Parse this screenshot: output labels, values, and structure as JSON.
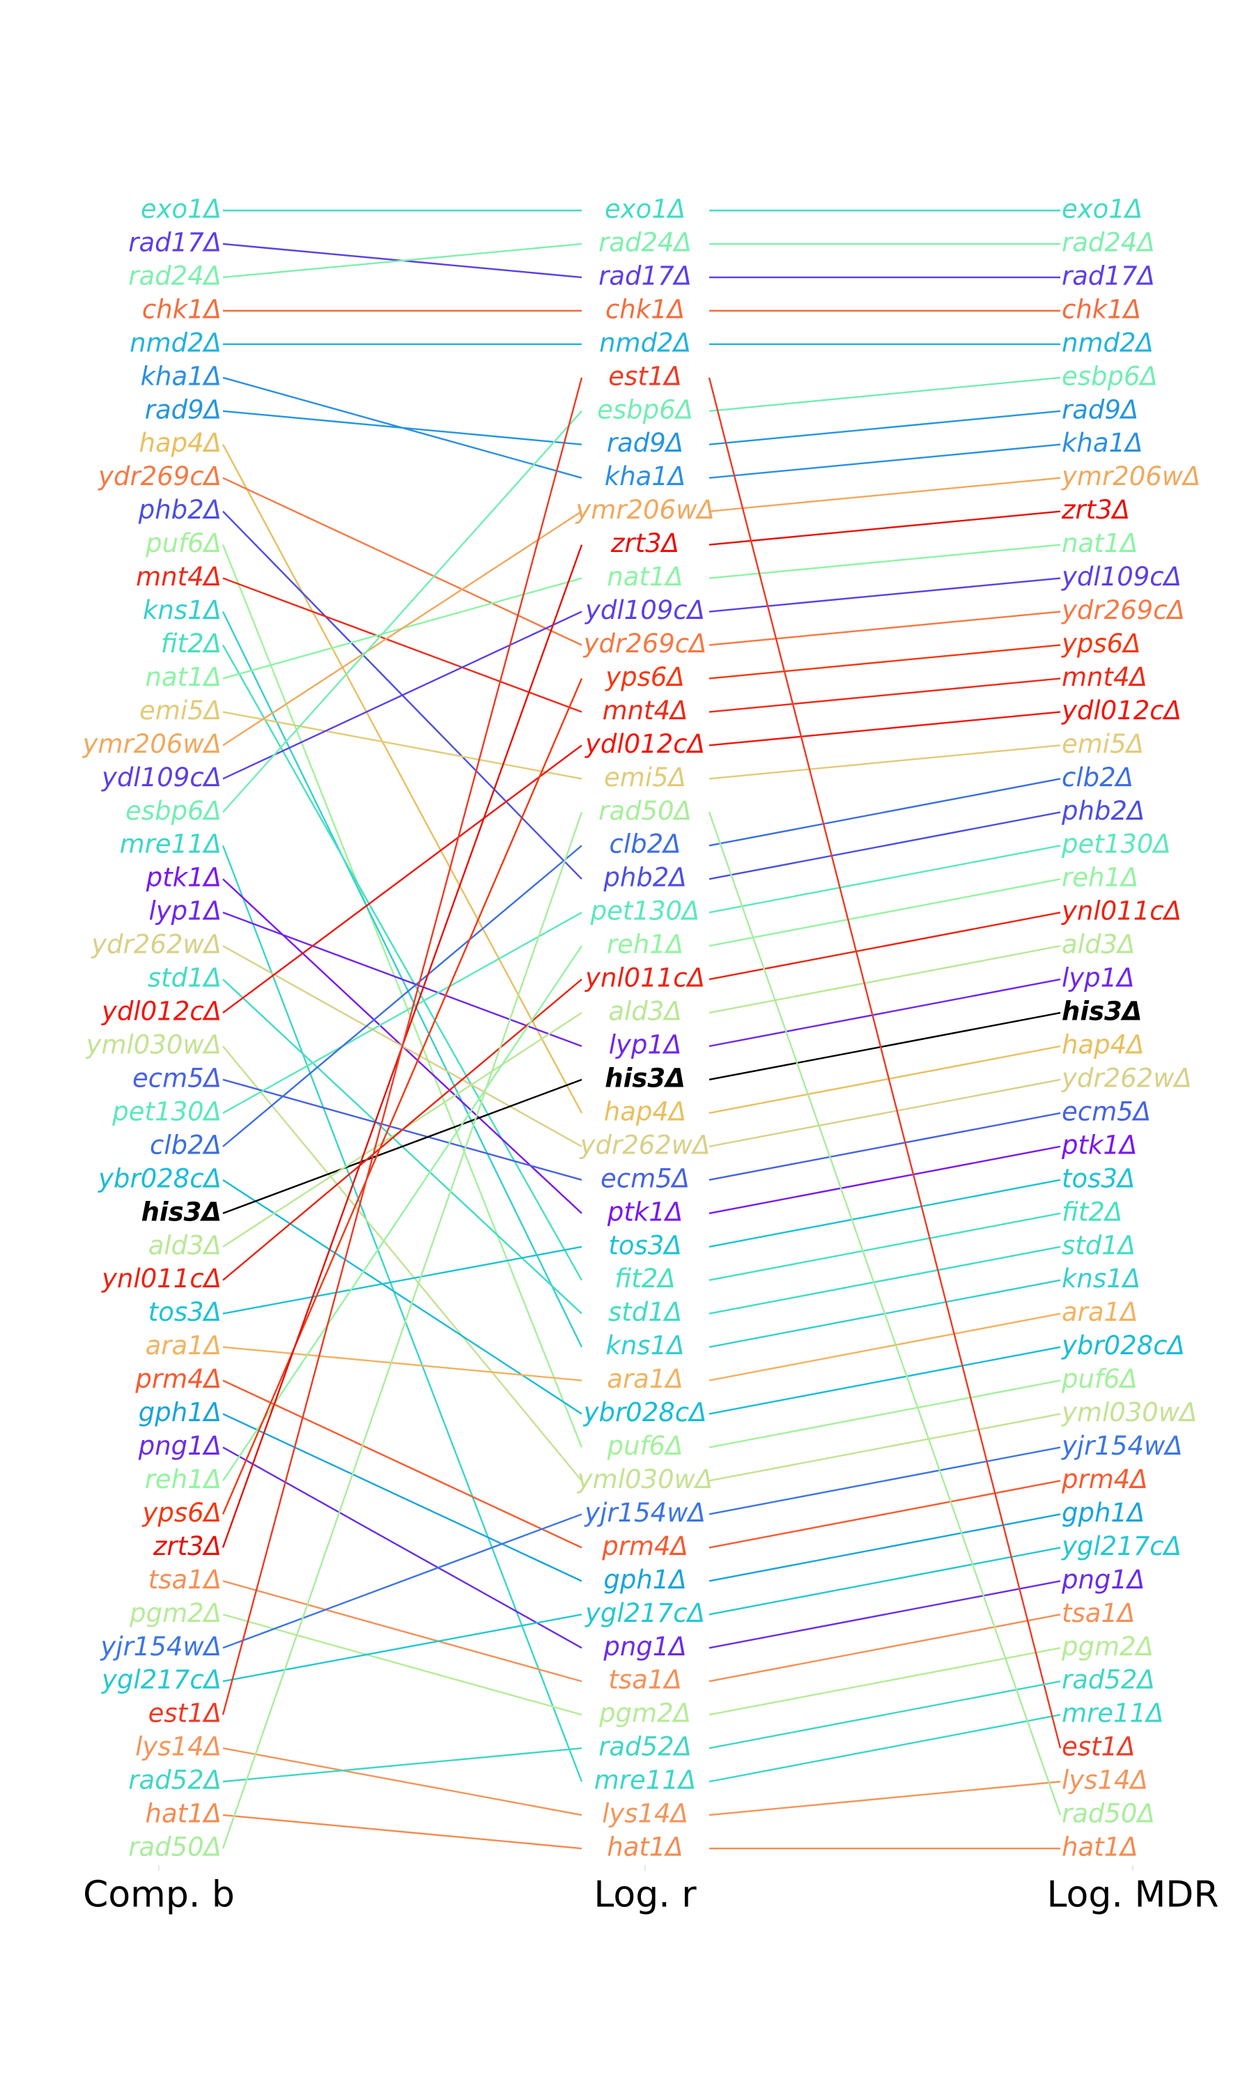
{
  "chart_data": {
    "type": "bump",
    "title": "",
    "suffix": "Δ",
    "highlight": "his3",
    "columns": [
      {
        "label": "Comp. b",
        "order": [
          "exo1",
          "rad17",
          "rad24",
          "chk1",
          "nmd2",
          "kha1",
          "rad9",
          "hap4",
          "ydr269c",
          "phb2",
          "puf6",
          "mnt4",
          "kns1",
          "fit2",
          "nat1",
          "emi5",
          "ymr206w",
          "ydl109c",
          "esbp6",
          "mre11",
          "ptk1",
          "lyp1",
          "ydr262w",
          "std1",
          "ydl012c",
          "yml030w",
          "ecm5",
          "pet130",
          "clb2",
          "ybr028c",
          "his3",
          "ald3",
          "ynl011c",
          "tos3",
          "ara1",
          "prm4",
          "gph1",
          "png1",
          "reh1",
          "yps6",
          "zrt3",
          "tsa1",
          "pgm2",
          "yjr154w",
          "ygl217c",
          "est1",
          "lys14",
          "rad52",
          "hat1",
          "rad50"
        ]
      },
      {
        "label": "Log. r",
        "order": [
          "exo1",
          "rad24",
          "rad17",
          "chk1",
          "nmd2",
          "est1",
          "esbp6",
          "rad9",
          "kha1",
          "ymr206w",
          "zrt3",
          "nat1",
          "ydl109c",
          "ydr269c",
          "yps6",
          "mnt4",
          "ydl012c",
          "emi5",
          "rad50",
          "clb2",
          "phb2",
          "pet130",
          "reh1",
          "ynl011c",
          "ald3",
          "lyp1",
          "his3",
          "hap4",
          "ydr262w",
          "ecm5",
          "ptk1",
          "tos3",
          "fit2",
          "std1",
          "kns1",
          "ara1",
          "ybr028c",
          "puf6",
          "yml030w",
          "yjr154w",
          "prm4",
          "gph1",
          "ygl217c",
          "png1",
          "tsa1",
          "pgm2",
          "rad52",
          "mre11",
          "lys14",
          "hat1"
        ]
      },
      {
        "label": "Log. MDR",
        "order": [
          "exo1",
          "rad24",
          "rad17",
          "chk1",
          "nmd2",
          "esbp6",
          "rad9",
          "kha1",
          "ymr206w",
          "zrt3",
          "nat1",
          "ydl109c",
          "ydr269c",
          "yps6",
          "mnt4",
          "ydl012c",
          "emi5",
          "clb2",
          "phb2",
          "pet130",
          "reh1",
          "ynl011c",
          "ald3",
          "lyp1",
          "his3",
          "hap4",
          "ydr262w",
          "ecm5",
          "ptk1",
          "tos3",
          "fit2",
          "std1",
          "kns1",
          "ara1",
          "ybr028c",
          "puf6",
          "yml030w",
          "yjr154w",
          "prm4",
          "gph1",
          "ygl217c",
          "png1",
          "tsa1",
          "pgm2",
          "rad52",
          "mre11",
          "est1",
          "lys14",
          "rad50",
          "hat1"
        ]
      }
    ],
    "colors": {
      "exo1": "#3fdcc4",
      "rad17": "#5b3ee8",
      "rad24": "#7ef0ad",
      "chk1": "#f46d3c",
      "nmd2": "#21b2de",
      "kha1": "#2a8fe4",
      "rad9": "#2495e0",
      "hap4": "#e9bf5e",
      "ydr269c": "#f57944",
      "phb2": "#4c4ee3",
      "puf6": "#a2f29a",
      "mnt4": "#ee2a17",
      "kns1": "#35cfd0",
      "fit2": "#45e1bf",
      "nat1": "#8cf4a4",
      "emi5": "#e2cb79",
      "ymr206w": "#f1a85c",
      "ydl109c": "#5c3fe4",
      "esbp6": "#72eeb3",
      "mre11": "#3ad6ca",
      "ptk1": "#7a17f0",
      "lyp1": "#6f26ee",
      "ydr262w": "#d8d087",
      "std1": "#40dcc4",
      "ydl012c": "#f2150b",
      "yml030w": "#c4e292",
      "ecm5": "#4662e2",
      "pet130": "#5ae8bc",
      "clb2": "#3a6ee2",
      "ybr028c": "#18bcd8",
      "his3": "#000000",
      "ald3": "#b8e894",
      "ynl011c": "#ec2210",
      "tos3": "#1cc3d4",
      "ara1": "#f2b260",
      "prm4": "#f75a30",
      "gph1": "#18a4dc",
      "png1": "#6a2ce9",
      "reh1": "#93f4a0",
      "yps6": "#f4380f",
      "zrt3": "#e81008",
      "tsa1": "#f59056",
      "pgm2": "#b5ec96",
      "yjr154w": "#3c75e3",
      "ygl217c": "#24c8d2",
      "est1": "#ee3a24",
      "lys14": "#f3955a",
      "rad52": "#3fd6c4",
      "hat1": "#f48b50",
      "rad50": "#a7ee9a"
    }
  }
}
